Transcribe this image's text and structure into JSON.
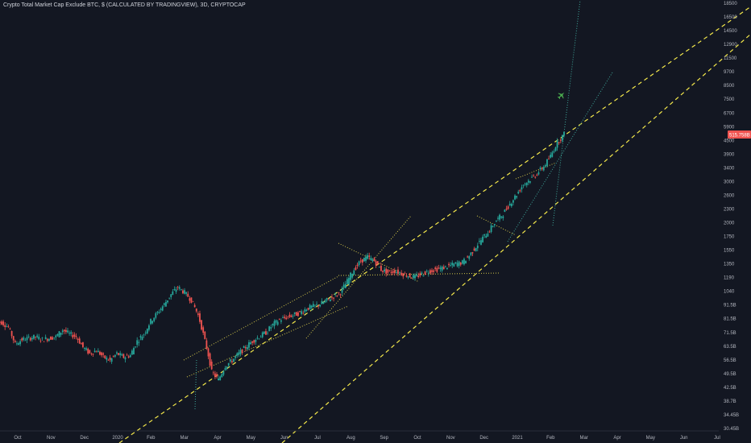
{
  "header": {
    "title": "Crypto Total Market Cap Exclude BTC, $ (CALCULATED BY TRADINGVIEW), 3D, CRYPTOCAP"
  },
  "colors": {
    "background": "#131722",
    "up": "#26a69a",
    "down": "#ef5350",
    "channel": "#f5e94b",
    "trend_dotted": "#d4c84a",
    "steep_dotted": "#3fa79b",
    "icon": "#4caf50",
    "price_tag": "#ef5350",
    "axis_text": "#b2b5be"
  },
  "price_tag": {
    "label": "515.758B",
    "value": 5157.58
  },
  "icons": {
    "airplane": "airplane-icon"
  },
  "chart_data": {
    "type": "candlestick",
    "y_scale": "log",
    "x_ticks": [
      "Oct",
      "Nov",
      "Dec",
      "2020",
      "Feb",
      "Mar",
      "Apr",
      "May",
      "Jun",
      "Jul",
      "Aug",
      "Sep",
      "Oct",
      "Nov",
      "Dec",
      "2021",
      "Feb",
      "Mar",
      "Apr",
      "May",
      "Jun",
      "Jul"
    ],
    "y_ticks": [
      "18500",
      "16500",
      "14500",
      "12900",
      "11500",
      "9700",
      "8500",
      "7500",
      "6700",
      "5900",
      "4500",
      "3900",
      "3400",
      "3000",
      "2600",
      "2300",
      "2000",
      "1750",
      "1550",
      "1350",
      "1190",
      "1040",
      "91.5B",
      "81.5B",
      "71.5B",
      "63.5B",
      "56.5B",
      "49.5B",
      "42.5B",
      "38.7B",
      "34.45B",
      "30.45B"
    ],
    "series": [
      {
        "values": [
          84,
          80,
          68,
          71,
          72,
          73,
          71,
          72,
          73,
          78,
          75,
          73,
          66,
          62,
          64,
          60,
          58,
          62,
          60,
          61,
          70,
          75,
          85,
          92,
          100,
          110,
          118,
          112,
          104,
          90,
          70,
          52,
          48,
          55,
          58,
          62,
          66,
          70,
          73,
          76,
          82,
          86,
          88,
          90,
          92,
          96,
          98,
          100,
          104,
          108,
          112,
          125,
          140,
          152,
          158,
          152,
          140,
          136,
          138,
          135,
          132,
          130,
          134,
          138,
          140,
          142,
          145,
          148,
          150,
          160,
          175,
          190,
          205,
          225,
          240,
          265,
          290,
          320,
          335,
          355,
          380,
          420,
          480,
          520
        ]
      }
    ]
  }
}
